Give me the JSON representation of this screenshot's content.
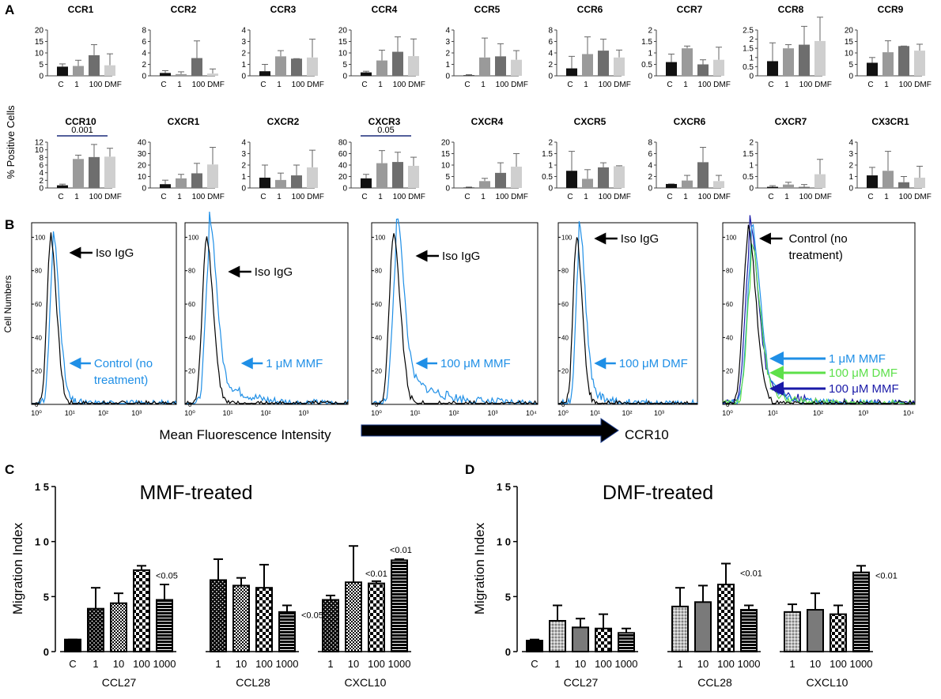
{
  "panel_labels": [
    "A",
    "B",
    "C",
    "D"
  ],
  "panel_a": {
    "ylabel": "% Positive Cells",
    "categories": [
      "C",
      "1",
      "100",
      "DMF"
    ],
    "bar_colors": [
      "#111111",
      "#9a9a9a",
      "#6e6e6e",
      "#cfcfcf"
    ],
    "rows": [
      [
        {
          "title": "CCR1",
          "ticks": [
            "0",
            "5",
            "10",
            "15",
            "20"
          ],
          "ymax": 20,
          "values": [
            4,
            4.3,
            9,
            4.6
          ],
          "errors": [
            1.2,
            2.5,
            4.6,
            5
          ]
        },
        {
          "title": "CCR2",
          "ticks": [
            "0",
            "2",
            "4",
            "6",
            "8"
          ],
          "ymax": 8,
          "values": [
            0.5,
            0.3,
            3.1,
            0.4
          ],
          "errors": [
            0.4,
            0.4,
            3,
            0.8
          ]
        },
        {
          "title": "CCR3",
          "ticks": [
            "0",
            "1",
            "2",
            "3",
            "4"
          ],
          "ymax": 4,
          "values": [
            0.4,
            1.7,
            1.5,
            1.6
          ],
          "errors": [
            0.6,
            0.5,
            0,
            1.6
          ]
        },
        {
          "title": "CCR4",
          "ticks": [
            "0",
            "5",
            "10",
            "15",
            "20"
          ],
          "ymax": 20,
          "values": [
            1.5,
            6.7,
            10.5,
            8.6
          ],
          "errors": [
            0.5,
            4.5,
            6.5,
            7.5
          ]
        },
        {
          "title": "CCR5",
          "ticks": [
            "0",
            "1",
            "2",
            "3",
            "4"
          ],
          "ymax": 4,
          "values": [
            0.05,
            1.6,
            1.7,
            1.4
          ],
          "errors": [
            0.05,
            1.7,
            1.1,
            0.8
          ]
        },
        {
          "title": "CCR6",
          "ticks": [
            "0",
            "2",
            "4",
            "6",
            "8"
          ],
          "ymax": 8,
          "values": [
            1.3,
            3.8,
            4.4,
            3.2
          ],
          "errors": [
            2.1,
            3,
            2,
            1.3
          ]
        },
        {
          "title": "CCR7",
          "ticks": [
            "0",
            "0.5",
            "1",
            "1.5",
            "2"
          ],
          "ymax": 2,
          "values": [
            0.6,
            1.2,
            0.5,
            0.7
          ],
          "errors": [
            0.35,
            0.1,
            0.2,
            0.55
          ]
        },
        {
          "title": "CCR8",
          "ticks": [
            "0",
            "0.5",
            "1",
            "1.5",
            "2",
            "2.5"
          ],
          "ymax": 2.5,
          "values": [
            0.8,
            1.5,
            1.7,
            1.9
          ],
          "errors": [
            1.0,
            0.2,
            1.0,
            1.3
          ]
        },
        {
          "title": "CCR9",
          "ticks": [
            "0",
            "5",
            "10",
            "15",
            "20"
          ],
          "ymax": 20,
          "values": [
            5.7,
            10.3,
            13,
            11
          ],
          "errors": [
            2.3,
            5,
            0,
            2.8
          ]
        }
      ],
      [
        {
          "title": "CCR10",
          "ticks": [
            "0",
            "2",
            "4",
            "6",
            "8",
            "10",
            "12"
          ],
          "ymax": 12,
          "values": [
            0.7,
            7.6,
            8.1,
            8.2
          ],
          "errors": [
            0.3,
            1,
            3.3,
            2.2
          ],
          "bracket": "0.001"
        },
        {
          "title": "CXCR1",
          "ticks": [
            "0",
            "10",
            "20",
            "30",
            "40"
          ],
          "ymax": 40,
          "values": [
            3.3,
            8.4,
            12.8,
            20.5
          ],
          "errors": [
            3.5,
            3.5,
            8.7,
            15
          ]
        },
        {
          "title": "CXCR2",
          "ticks": [
            "0",
            "1",
            "2",
            "3",
            "4"
          ],
          "ymax": 4,
          "values": [
            0.9,
            0.7,
            1.1,
            1.8
          ],
          "errors": [
            1.1,
            0.6,
            0.9,
            1.5
          ]
        },
        {
          "title": "CXCR3",
          "ticks": [
            "0",
            "20",
            "40",
            "60",
            "80"
          ],
          "ymax": 80,
          "values": [
            16.8,
            43.3,
            45.4,
            38.7
          ],
          "errors": [
            7,
            22,
            17,
            15
          ]
        },
        {
          "title": "CXCR4",
          "ticks": [
            "0",
            "5",
            "10",
            "15",
            "20"
          ],
          "ymax": 20,
          "values": [
            0.2,
            3,
            6.6,
            9.3
          ],
          "errors": [
            0.2,
            1.2,
            4.4,
            5.7
          ]
        },
        {
          "title": "CXCR5",
          "ticks": [
            "0",
            "0.5",
            "1",
            "1.5",
            "2"
          ],
          "ymax": 2,
          "values": [
            0.75,
            0.4,
            0.9,
            0.95
          ],
          "errors": [
            0.85,
            0.4,
            0.2,
            0.02
          ]
        },
        {
          "title": "CXCR6",
          "ticks": [
            "0",
            "2",
            "4",
            "6",
            "8"
          ],
          "ymax": 8,
          "values": [
            0.7,
            1.3,
            4.5,
            1.2
          ],
          "errors": [
            0,
            0.9,
            2.6,
            1
          ]
        },
        {
          "title": "CXCR7",
          "ticks": [
            "0",
            "0.5",
            "1",
            "1.5",
            "2"
          ],
          "ymax": 2,
          "values": [
            0.05,
            0.15,
            0.05,
            0.6
          ],
          "errors": [
            0.05,
            0.1,
            0.1,
            0.65
          ]
        },
        {
          "title": "CX3CR1",
          "ticks": [
            "0",
            "1",
            "2",
            "3",
            "4"
          ],
          "ymax": 4,
          "values": [
            1.1,
            1.5,
            0.5,
            0.9
          ],
          "errors": [
            0.7,
            1.7,
            0.5,
            1
          ]
        }
      ]
    ],
    "bracket_p_ccr10": "0.001",
    "bracket_p_cxcr3": "0.05"
  },
  "panel_b": {
    "ylabel": "Cell Numbers",
    "xlabel": "Mean Fluorescence Intensity",
    "arrow_label": "CCR10",
    "yticks": [
      "0",
      "20",
      "40",
      "60",
      "80",
      "100"
    ],
    "xticks_short": [
      "10⁰",
      "10¹",
      "10²",
      "10³"
    ],
    "xticks_full": [
      "10⁰",
      "10¹",
      "10²",
      "10³",
      "10⁴"
    ],
    "plots": [
      {
        "iso_label": "Iso IgG",
        "treat_label_line1": "Control (no",
        "treat_label_line2": "treatment)"
      },
      {
        "iso_label": "Iso IgG",
        "treat_label_line1": "1 μM MMF",
        "treat_label_line2": ""
      },
      {
        "iso_label": "Iso IgG",
        "treat_label_line1": "100 μM MMF",
        "treat_label_line2": ""
      },
      {
        "iso_label": "Iso IgG",
        "treat_label_line1": "100 μM DMF",
        "treat_label_line2": ""
      },
      {
        "iso_label_line1": "Control (no",
        "iso_label_line2": "treatment)",
        "legend": [
          "1 μM MMF",
          "100 μM DMF",
          "100 μM MMF"
        ]
      }
    ],
    "colors": {
      "iso": "#000000",
      "treat": "#1f8fe6",
      "green": "#5de04a",
      "navy": "#1a1aa8"
    }
  },
  "chart_data": [
    {
      "type": "bar",
      "title": "MMF-treated",
      "ylabel": "Migration Index",
      "ylim": [
        0,
        15
      ],
      "yticks": [
        "0",
        "5",
        "1 0",
        "1 5"
      ],
      "groups": [
        {
          "name": "CCL27",
          "categories": [
            "C",
            "1",
            "10",
            "100",
            "1000"
          ],
          "values": [
            1.1,
            3.9,
            4.4,
            7.4,
            4.7
          ],
          "errors": [
            0,
            1.9,
            0.9,
            0.4,
            1.4
          ],
          "patterns": [
            "solid",
            "dots",
            "checker",
            "checkerbig",
            "stripes"
          ],
          "pvalue": "<0.05",
          "pvalue_index": 3
        },
        {
          "name": "CCL28",
          "categories": [
            "1",
            "10",
            "100",
            "1000"
          ],
          "values": [
            6.5,
            6,
            5.8,
            3.6
          ],
          "errors": [
            1.9,
            0.7,
            2.1,
            0.6
          ],
          "patterns": [
            "dots",
            "checker",
            "checkerbig",
            "stripes"
          ],
          "pvalue": "<0.05",
          "pvalue_index": 3
        },
        {
          "name": "CXCL10",
          "categories": [
            "1",
            "10",
            "100",
            "1000"
          ],
          "values": [
            4.7,
            6.3,
            6.2,
            8.3
          ],
          "errors": [
            0.4,
            3.3,
            0.2,
            0.1
          ],
          "patterns": [
            "dots",
            "checker",
            "checkerbig",
            "stripes"
          ],
          "pvalue_a": "<0.01",
          "pvalue_b": "<0.01"
        }
      ]
    },
    {
      "type": "bar",
      "title": "DMF-treated",
      "ylabel": "Migration Index",
      "ylim": [
        0,
        15
      ],
      "yticks": [
        "0",
        "5",
        "1 0",
        "1 5"
      ],
      "groups": [
        {
          "name": "CCL27",
          "categories": [
            "C",
            "1",
            "10",
            "100",
            "1000"
          ],
          "values": [
            1,
            2.8,
            2.2,
            2.1,
            1.7
          ],
          "errors": [
            0.1,
            1.4,
            0.8,
            1.3,
            0.4
          ],
          "patterns": [
            "solid",
            "lightdots",
            "gray",
            "checkerbig",
            "stripes"
          ]
        },
        {
          "name": "CCL28",
          "categories": [
            "1",
            "10",
            "100",
            "1000"
          ],
          "values": [
            4.1,
            4.5,
            6.1,
            3.8
          ],
          "errors": [
            1.7,
            1.5,
            1.9,
            0.4
          ],
          "patterns": [
            "lightdots",
            "gray",
            "checkerbig",
            "stripes"
          ],
          "pvalue": "<0.01",
          "pvalue_index": 2
        },
        {
          "name": "CXCL10",
          "categories": [
            "1",
            "10",
            "100",
            "1000"
          ],
          "values": [
            3.6,
            3.8,
            3.4,
            7.2
          ],
          "errors": [
            0.7,
            1.5,
            0.8,
            0.6
          ],
          "patterns": [
            "lightdots",
            "gray",
            "checkerbig",
            "stripes"
          ],
          "pvalue": "<0.01",
          "pvalue_index": 3
        }
      ]
    }
  ]
}
